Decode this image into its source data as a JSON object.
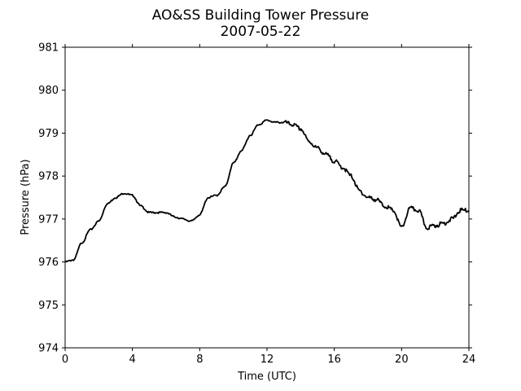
{
  "chart_data": {
    "type": "line",
    "title": "AO&SS Building Tower Pressure",
    "subtitle": "2007-05-22",
    "xlabel": "Time (UTC)",
    "ylabel": "Pressure (hPa)",
    "xlim": [
      0,
      24
    ],
    "ylim": [
      974,
      981
    ],
    "x_ticks": [
      "0",
      "4",
      "8",
      "12",
      "16",
      "20",
      "24"
    ],
    "y_ticks": [
      "974",
      "975",
      "976",
      "977",
      "978",
      "979",
      "980",
      "981"
    ],
    "grid": false,
    "legend": "none",
    "line_color": "#000000",
    "series": [
      {
        "x": [
          0,
          0.5,
          1,
          1.5,
          2,
          2.5,
          3,
          3.5,
          4,
          4.5,
          5,
          5.5,
          6,
          6.5,
          7,
          7.5,
          8,
          8.5,
          9,
          9.5,
          10,
          10.5,
          11,
          11.5,
          12,
          12.5,
          13,
          13.5,
          14,
          14.5,
          15,
          15.5,
          16,
          16.5,
          17,
          17.5,
          18,
          18.5,
          19,
          19.5,
          20,
          20.5,
          21,
          21.5,
          22,
          22.5,
          23,
          23.5,
          24
        ],
        "y": [
          976.0,
          976.05,
          976.45,
          976.75,
          976.95,
          977.35,
          977.5,
          977.6,
          977.55,
          977.3,
          977.15,
          977.15,
          977.15,
          977.05,
          977.0,
          976.95,
          977.1,
          977.5,
          977.55,
          977.75,
          978.3,
          978.6,
          978.95,
          979.2,
          979.3,
          979.25,
          979.25,
          979.2,
          979.1,
          978.8,
          978.65,
          978.5,
          978.35,
          978.2,
          978.0,
          977.65,
          977.5,
          977.45,
          977.3,
          977.2,
          976.8,
          977.25,
          977.2,
          976.8,
          976.85,
          976.9,
          977.0,
          977.2,
          977.2
        ]
      }
    ]
  }
}
